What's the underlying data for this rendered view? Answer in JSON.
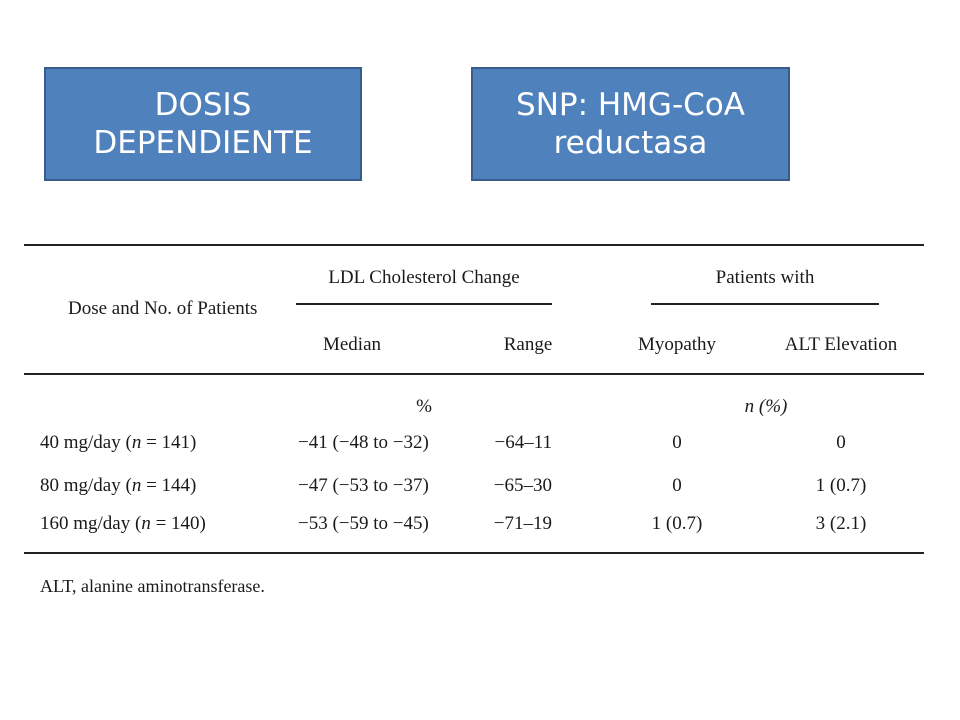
{
  "boxes": {
    "dose_dependent": {
      "line1": "DOSIS",
      "line2": "DEPENDIENTE"
    },
    "snp": {
      "line1": "SNP: HMG-CoA",
      "line2": "reductasa"
    }
  },
  "table": {
    "col_dose": "Dose and No. of Patients",
    "group_ldl": "LDL Cholesterol Change",
    "group_patients": "Patients with",
    "col_median": "Median",
    "col_range": "Range",
    "col_myopathy": "Myopathy",
    "col_alt": "ALT Elevation",
    "unit_ldl": "%",
    "unit_patients": "n (%)",
    "rows": [
      {
        "dose": "40 mg/day",
        "n_label": "n",
        "n_rest": " = 141)",
        "median": "−41 (−48 to −32)",
        "range": "−64–11",
        "myopathy": "0",
        "alt": "0"
      },
      {
        "dose": "80 mg/day",
        "n_label": "n",
        "n_rest": " = 144)",
        "median": "−47 (−53 to −37)",
        "range": "−65–30",
        "myopathy": "0",
        "alt": "1 (0.7)"
      },
      {
        "dose": "160 mg/day",
        "n_label": "n",
        "n_rest": " = 140)",
        "median": "−53 (−59 to −45)",
        "range": "−71–19",
        "myopathy": "1 (0.7)",
        "alt": "3 (2.1)"
      }
    ],
    "footnote": "ALT, alanine aminotransferase."
  }
}
